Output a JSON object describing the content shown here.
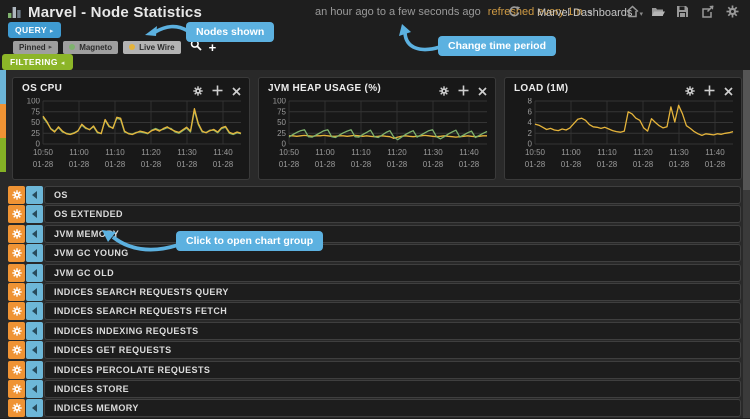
{
  "header": {
    "title": "Marvel - Node Statistics",
    "time_range": "an hour ago to a few seconds ago",
    "refresh_label": "refreshed every 1m",
    "dashboards_menu": "Marvel Dashboards"
  },
  "query": {
    "label": "QUERY",
    "filtering_label": "FILTERING",
    "nodes": [
      {
        "label": "Pinned",
        "color": null
      },
      {
        "label": "Magneto",
        "color": "#7eb26d"
      },
      {
        "label": "Live Wire",
        "color": "#e5b43b"
      }
    ]
  },
  "tooltips": {
    "nodes_shown": "Nodes shown",
    "change_time": "Change time period",
    "click_open": "Click to open chart group"
  },
  "chart_data": [
    {
      "type": "line",
      "title": "OS CPU",
      "categories": [
        "10:50",
        "11:00",
        "11:10",
        "11:20",
        "11:30",
        "11:40"
      ],
      "x_sub": "01-28",
      "ylim": [
        0,
        100
      ],
      "yticks": [
        100,
        75,
        50,
        25,
        0
      ],
      "grid": true,
      "legend": "none",
      "series": [
        {
          "name": "Magneto",
          "color": "#7eb26d",
          "values": [
            62,
            50,
            36,
            30,
            38,
            28,
            25,
            23,
            26,
            31,
            44,
            36,
            34,
            40,
            26,
            25,
            55,
            40,
            38,
            60,
            57,
            28,
            25,
            23,
            27,
            28,
            26,
            24,
            32,
            36,
            32,
            34,
            38,
            36,
            28,
            25,
            31,
            37,
            28,
            78,
            45,
            28,
            27,
            32,
            32,
            26,
            36,
            39,
            25,
            22,
            26,
            24
          ]
        },
        {
          "name": "Live Wire",
          "color": "#e5b43b",
          "values": [
            65,
            52,
            35,
            28,
            40,
            30,
            24,
            22,
            25,
            30,
            46,
            38,
            33,
            42,
            28,
            24,
            57,
            42,
            36,
            62,
            60,
            30,
            24,
            22,
            26,
            30,
            28,
            25,
            31,
            34,
            30,
            36,
            40,
            34,
            30,
            27,
            33,
            39,
            30,
            82,
            48,
            30,
            26,
            31,
            34,
            28,
            38,
            41,
            27,
            24,
            28,
            25
          ]
        }
      ]
    },
    {
      "type": "line",
      "title": "JVM HEAP USAGE (%)",
      "categories": [
        "10:50",
        "11:00",
        "11:10",
        "11:20",
        "11:30",
        "11:40"
      ],
      "x_sub": "01-28",
      "ylim": [
        0,
        100
      ],
      "yticks": [
        100,
        75,
        50,
        25,
        0
      ],
      "grid": true,
      "legend": "none",
      "series": [
        {
          "name": "Live Wire",
          "color": "#e5b43b",
          "values": [
            19,
            19,
            18,
            19,
            20,
            19,
            18,
            19,
            19,
            20,
            19,
            18,
            18,
            19,
            19,
            18,
            19,
            20,
            19,
            18,
            19,
            18,
            17,
            18,
            19,
            18,
            17,
            13,
            16,
            18,
            19,
            18,
            17,
            18,
            19,
            20,
            19,
            18,
            17,
            18,
            19,
            18,
            17,
            16,
            17,
            18,
            19,
            18,
            17,
            18,
            19,
            19
          ]
        },
        {
          "name": "Magneto",
          "color": "#7eb26d",
          "values": [
            16,
            22,
            27,
            31,
            33,
            17,
            16,
            21,
            26,
            31,
            33,
            17,
            15,
            21,
            26,
            30,
            33,
            17,
            16,
            22,
            27,
            32,
            17,
            15,
            21,
            27,
            31,
            16,
            10,
            16,
            22,
            27,
            31,
            16,
            21,
            26,
            31,
            33,
            17,
            12,
            17,
            23,
            28,
            32,
            16,
            21,
            26,
            30,
            15,
            20,
            25,
            29
          ]
        }
      ]
    },
    {
      "type": "line",
      "title": "LOAD (1M)",
      "categories": [
        "10:50",
        "11:00",
        "11:10",
        "11:20",
        "11:30",
        "11:40"
      ],
      "x_sub": "01-28",
      "ylim": [
        0,
        8
      ],
      "yticks": [
        8,
        6,
        4,
        2,
        0
      ],
      "grid": true,
      "legend": "none",
      "series": [
        {
          "name": "Live Wire",
          "color": "#e5b43b",
          "values": [
            3.7,
            3.5,
            3.1,
            2.7,
            2.9,
            2.6,
            2.5,
            2.8,
            2.6,
            3.0,
            3.8,
            4.6,
            4.8,
            4.4,
            3.6,
            3.2,
            3.1,
            2.9,
            3.1,
            2.8,
            2.5,
            2.3,
            2.2,
            2.4,
            6.0,
            5.6,
            4.8,
            4.4,
            3.0,
            2.4,
            4.7,
            4.0,
            3.4,
            3.0,
            3.2,
            6.9,
            4.1,
            7.2,
            5.6,
            3.4,
            2.9,
            2.3,
            1.9,
            1.6,
            1.9,
            1.8,
            1.7,
            1.9,
            1.8,
            2.0,
            2.1,
            2.3
          ]
        }
      ]
    }
  ],
  "rows": [
    "OS",
    "OS EXTENDED",
    "JVM MEMORY",
    "JVM GC YOUNG",
    "JVM GC OLD",
    "INDICES SEARCH REQUESTS QUERY",
    "INDICES SEARCH REQUESTS FETCH",
    "INDICES INDEXING REQUESTS",
    "INDICES GET REQUESTS",
    "INDICES PERCOLATE REQUESTS",
    "INDICES STORE",
    "INDICES MEMORY"
  ],
  "colors": {
    "accent_blue": "#5cb1e0",
    "query_blue": "#3f9bd2",
    "filtering_green": "#8cb528",
    "row_orange": "#ef9334",
    "row_blue": "#6db7d8",
    "series_yellow": "#e5b43b",
    "series_green": "#7eb26d"
  }
}
